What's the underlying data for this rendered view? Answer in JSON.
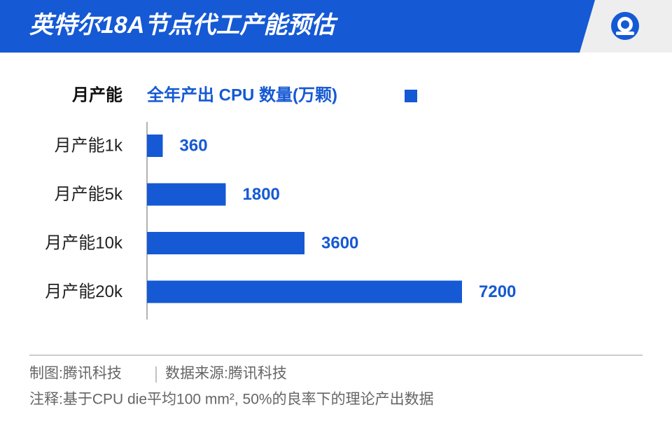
{
  "chart_data": {
    "type": "bar",
    "orientation": "horizontal",
    "title": "英特尔18A节点代工产能预估",
    "y_axis_label": "月产能",
    "categories": [
      "月产能1k",
      "月产能5k",
      "月产能10k",
      "月产能20k"
    ],
    "series": [
      {
        "name": "全年产出 CPU 数量(万颗)",
        "color": "#1559d4",
        "values": [
          360,
          1800,
          3600,
          7200
        ]
      }
    ],
    "credit": "制图:腾讯科技",
    "source": "数据来源:腾讯科技",
    "note": "注释:基于CPU die平均100 mm², 50%的良率下的理论产出数据"
  }
}
